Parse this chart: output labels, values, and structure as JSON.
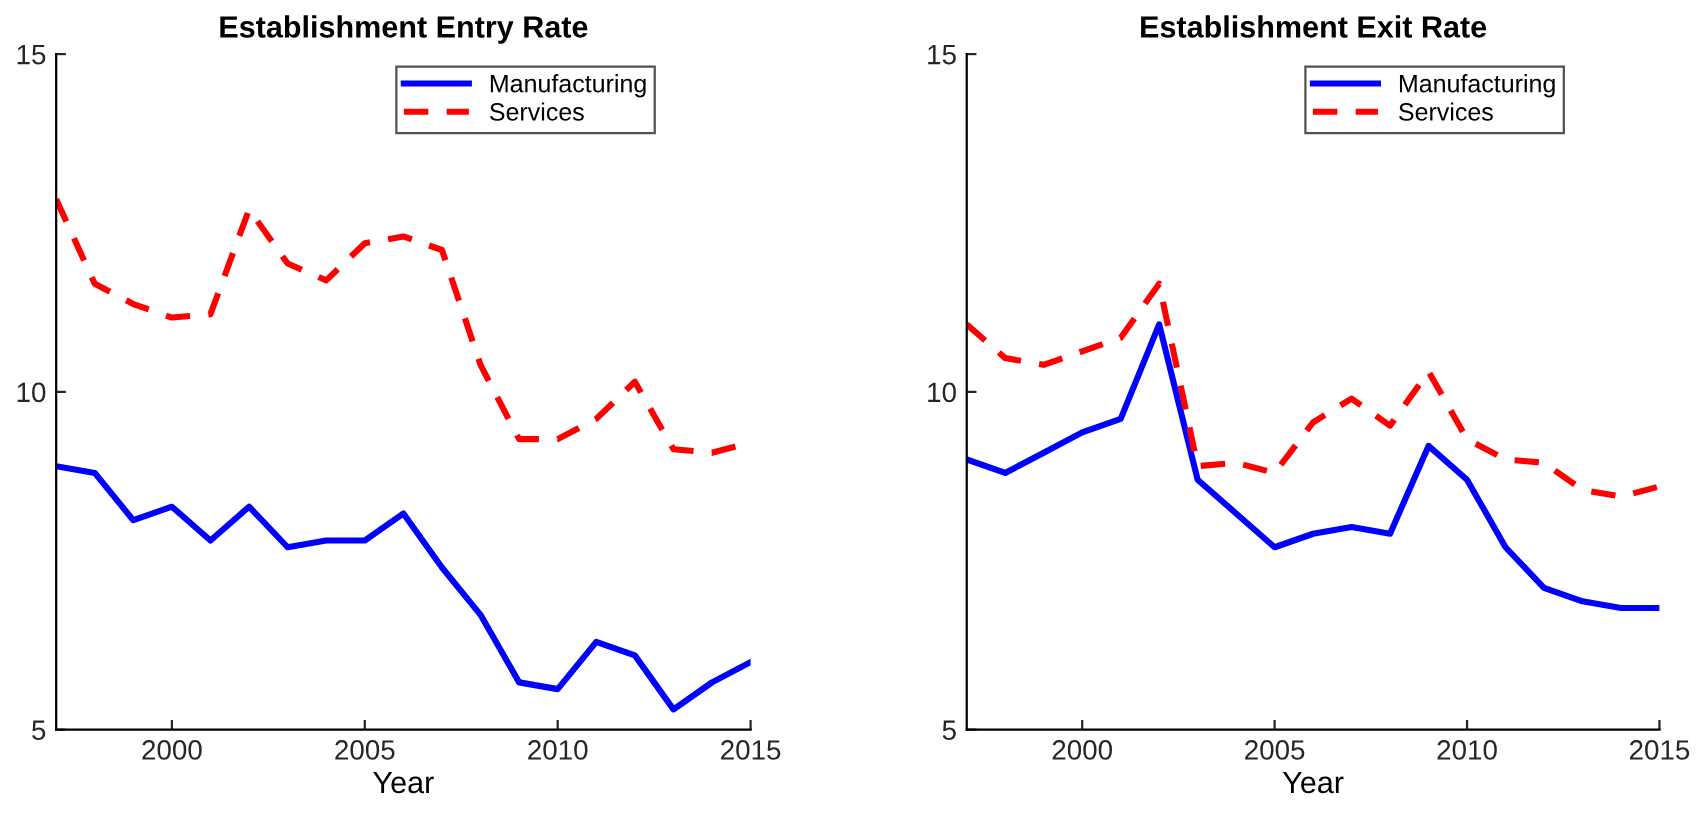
{
  "chart_data": [
    {
      "type": "line",
      "title": "Establishment Entry Rate",
      "xlabel": "Year",
      "x": [
        1997,
        1998,
        1999,
        2000,
        2001,
        2002,
        2003,
        2004,
        2005,
        2006,
        2007,
        2008,
        2009,
        2010,
        2011,
        2012,
        2013,
        2014,
        2015
      ],
      "series": [
        {
          "name": "Manufacturing",
          "color": "#0000ff",
          "line_style": "solid",
          "values": [
            8.9,
            8.8,
            8.1,
            8.3,
            7.8,
            8.3,
            7.7,
            7.8,
            7.8,
            8.2,
            7.4,
            6.7,
            5.7,
            5.6,
            6.3,
            6.1,
            5.3,
            5.7,
            6.0
          ]
        },
        {
          "name": "Services",
          "color": "#ff0000",
          "line_style": "dashed",
          "values": [
            12.85,
            11.6,
            11.3,
            11.1,
            11.15,
            12.7,
            11.9,
            11.65,
            12.2,
            12.3,
            12.1,
            10.4,
            9.3,
            9.3,
            9.6,
            10.15,
            9.15,
            9.1,
            9.25
          ]
        }
      ],
      "xlim": [
        1997,
        2015
      ],
      "ylim": [
        5,
        15
      ],
      "xticks": [
        2000,
        2005,
        2010,
        2015
      ],
      "yticks": [
        5,
        10,
        15
      ],
      "grid": false,
      "legend": "top right",
      "marker": "none"
    },
    {
      "type": "line",
      "title": "Establishment Exit Rate",
      "xlabel": "Year",
      "x": [
        1997,
        1998,
        1999,
        2000,
        2001,
        2002,
        2003,
        2004,
        2005,
        2006,
        2007,
        2008,
        2009,
        2010,
        2011,
        2012,
        2013,
        2014,
        2015
      ],
      "series": [
        {
          "name": "Manufacturing",
          "color": "#0000ff",
          "line_style": "solid",
          "values": [
            9.0,
            8.8,
            9.1,
            9.4,
            9.6,
            11.0,
            8.7,
            8.2,
            7.7,
            7.9,
            8.0,
            7.9,
            9.2,
            8.7,
            7.7,
            7.1,
            6.9,
            6.8,
            6.8
          ]
        },
        {
          "name": "Services",
          "color": "#ff0000",
          "line_style": "dashed",
          "values": [
            11.0,
            10.5,
            10.4,
            10.6,
            10.8,
            11.6,
            8.9,
            8.95,
            8.8,
            9.55,
            9.9,
            9.5,
            10.3,
            9.3,
            9.0,
            8.95,
            8.55,
            8.45,
            8.6
          ]
        }
      ],
      "xlim": [
        1997,
        2015
      ],
      "ylim": [
        5,
        15
      ],
      "xticks": [
        2000,
        2005,
        2010,
        2015
      ],
      "yticks": [
        5,
        10,
        15
      ],
      "grid": false,
      "legend": "top right",
      "marker": "none"
    }
  ]
}
